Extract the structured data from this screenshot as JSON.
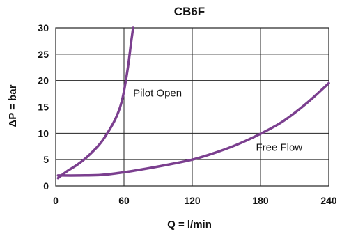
{
  "chart_data": {
    "type": "line",
    "title": "CB6F",
    "xlabel": "Q = l/min",
    "ylabel": "ΔP = bar",
    "xlim": [
      0,
      240
    ],
    "ylim": [
      0,
      30
    ],
    "x_ticks": [
      0,
      60,
      120,
      180,
      240
    ],
    "y_ticks": [
      0,
      5,
      10,
      15,
      20,
      25,
      30
    ],
    "x_tick_labels": [
      "0",
      "60",
      "120",
      "180",
      "240"
    ],
    "y_tick_labels": [
      "0",
      "5",
      "10",
      "15",
      "20",
      "25",
      "30"
    ],
    "grid": true,
    "series_color": "#7b3f8f",
    "series": [
      {
        "x": [
          2,
          10,
          20,
          30,
          40,
          50,
          55,
          58,
          60,
          62,
          64,
          66,
          68
        ],
        "y": [
          1.5,
          2.8,
          4.2,
          6.0,
          8.3,
          11.7,
          14.0,
          16.0,
          18.0,
          20.5,
          23.3,
          26.8,
          30.0
        ]
      },
      {
        "x": [
          2,
          20,
          40,
          60,
          80,
          100,
          120,
          140,
          160,
          180,
          200,
          220,
          240
        ],
        "y": [
          2.0,
          2.0,
          2.1,
          2.6,
          3.3,
          4.1,
          5.0,
          6.3,
          7.9,
          9.9,
          12.3,
          15.6,
          19.5
        ]
      }
    ],
    "annotations": [
      {
        "text": "Pilot Open",
        "x": 68,
        "y": 17
      },
      {
        "text": "Free Flow",
        "x": 176,
        "y": 6.7
      }
    ]
  }
}
